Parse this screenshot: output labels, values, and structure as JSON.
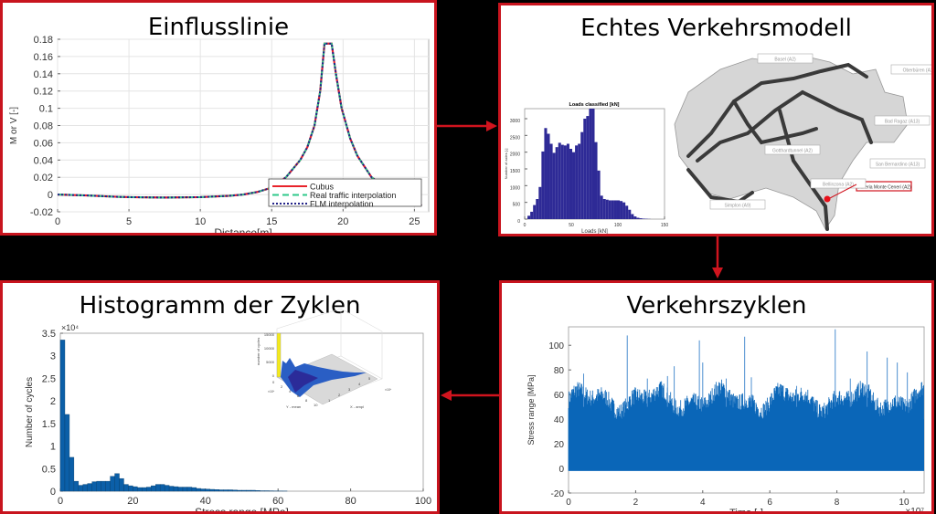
{
  "colors": {
    "border": "#c8141e",
    "bar_dark": "#2e2a96",
    "bar_blue": "#0b5fa8",
    "series_blue": "#0a66b8",
    "cubus": "#e8232b",
    "real": "#2ec98a",
    "flm": "#222288"
  },
  "panels": {
    "influence": {
      "title": "Einflusslinie"
    },
    "traffic_model": {
      "title": "Echtes Verkehrsmodell",
      "map_labels": [
        "Basel (A2)",
        "Oberbüren (A1)",
        "Gotthardtunnel (A2)",
        "Galleria Monte Ceneri (A2)",
        "San Bernardino (A13)",
        "Bad Ragaz (A13)",
        "Bellinzona (A2)",
        "Simplon (A9)"
      ]
    },
    "cycles_histogram": {
      "title": "Histogramm der Zyklen"
    },
    "traffic_cycles": {
      "title": "Verkehrszyklen"
    }
  },
  "chart_data": [
    {
      "id": "influence",
      "type": "line",
      "title": "",
      "xlabel": "Distance[m]",
      "ylabel": "M or V [-]",
      "xlim": [
        0,
        26
      ],
      "ylim": [
        -0.02,
        0.18
      ],
      "grid": true,
      "xticks": [
        "0",
        "5",
        "10",
        "15",
        "20",
        "25"
      ],
      "xtick_values": [
        0,
        5,
        10,
        15,
        20,
        25
      ],
      "yticks": [
        "-0.02",
        "0",
        "0.02",
        "0.04",
        "0.06",
        "0.08",
        "0.1",
        "0.12",
        "0.14",
        "0.16",
        "0.18"
      ],
      "ytick_values": [
        -0.02,
        0,
        0.02,
        0.04,
        0.06,
        0.08,
        0.1,
        0.12,
        0.14,
        0.16,
        0.18
      ],
      "legend": "bottom-right",
      "x": [
        0,
        2,
        4,
        5,
        7.5,
        10,
        12,
        13,
        14,
        15,
        16,
        17,
        17.5,
        18,
        18.4,
        18.7,
        19.2,
        19.5,
        19.9,
        20.5,
        21,
        22,
        23,
        24,
        25,
        25.5
      ],
      "series": [
        {
          "name": "Cubus",
          "style": "solid",
          "y": [
            0,
            -0.001,
            -0.0025,
            -0.003,
            -0.0035,
            -0.003,
            -0.0015,
            0,
            0.003,
            0.008,
            0.02,
            0.04,
            0.055,
            0.08,
            0.12,
            0.175,
            0.175,
            0.14,
            0.1,
            0.065,
            0.045,
            0.02,
            0.008,
            0.002,
            -0.002,
            -0.013
          ]
        },
        {
          "name": "Real traffic interpolation",
          "style": "dashed",
          "y": [
            0,
            -0.001,
            -0.0025,
            -0.003,
            -0.0035,
            -0.003,
            -0.0015,
            0,
            0.003,
            0.008,
            0.02,
            0.04,
            0.055,
            0.08,
            0.12,
            0.175,
            0.175,
            0.14,
            0.1,
            0.065,
            0.045,
            0.02,
            0.008,
            0.002,
            -0.002,
            -0.013
          ]
        },
        {
          "name": "FLM interpolation",
          "style": "dotted",
          "y": [
            0,
            -0.001,
            -0.0025,
            -0.003,
            -0.0035,
            -0.003,
            -0.0015,
            0,
            0.003,
            0.008,
            0.02,
            0.04,
            0.055,
            0.08,
            0.12,
            0.175,
            0.175,
            0.14,
            0.1,
            0.065,
            0.045,
            0.02,
            0.008,
            0.002,
            -0.002,
            -0.013
          ]
        }
      ]
    },
    {
      "id": "loads",
      "type": "bar",
      "title": "Loads classified [kN]",
      "xlabel": "Loads [kN]",
      "ylabel": "Number of axles [-]",
      "xlim": [
        0,
        150
      ],
      "ylim": [
        0,
        3300
      ],
      "bin_width": 3,
      "xticks": [
        "0",
        "50",
        "100",
        "150"
      ],
      "xtick_values": [
        0,
        50,
        100,
        150
      ],
      "yticks": [
        "0",
        "500",
        "1000",
        "1500",
        "2000",
        "2500",
        "3000"
      ],
      "ytick_values": [
        0,
        500,
        1000,
        1500,
        2000,
        2500,
        3000
      ],
      "bin_starts": [
        0,
        3,
        6,
        9,
        12,
        15,
        18,
        21,
        24,
        27,
        30,
        33,
        36,
        39,
        42,
        45,
        48,
        51,
        54,
        57,
        60,
        63,
        66,
        69,
        72,
        75,
        78,
        81,
        84,
        87,
        90,
        93,
        96,
        99,
        102,
        105,
        108,
        111,
        114,
        117,
        120,
        123,
        126,
        129,
        132
      ],
      "values": [
        0,
        100,
        220,
        420,
        600,
        960,
        2020,
        2720,
        2550,
        2250,
        1980,
        2150,
        2280,
        2220,
        2200,
        2250,
        2100,
        2000,
        2200,
        2250,
        2600,
        3000,
        3080,
        3300,
        3300,
        2300,
        1450,
        700,
        600,
        580,
        560,
        560,
        560,
        560,
        540,
        500,
        400,
        280,
        150,
        80,
        40,
        25,
        15,
        10,
        5
      ]
    },
    {
      "id": "cycles",
      "type": "bar",
      "title": "",
      "xlabel": "Stress range [MPa]",
      "ylabel": "Number of cycles",
      "yscale_label": "×10⁴",
      "xlim": [
        0,
        100
      ],
      "ylim": [
        0,
        3.5
      ],
      "bin_width": 1.25,
      "xticks": [
        "0",
        "20",
        "40",
        "60",
        "80",
        "100"
      ],
      "xtick_values": [
        0,
        20,
        40,
        60,
        80,
        100
      ],
      "yticks": [
        "0",
        "0.5",
        "1",
        "1.5",
        "2",
        "2.5",
        "3",
        "3.5"
      ],
      "ytick_values": [
        0,
        0.5,
        1,
        1.5,
        2,
        2.5,
        3,
        3.5
      ],
      "values": [
        3.35,
        1.7,
        0.75,
        0.22,
        0.13,
        0.15,
        0.17,
        0.21,
        0.22,
        0.22,
        0.22,
        0.33,
        0.39,
        0.28,
        0.15,
        0.12,
        0.1,
        0.08,
        0.08,
        0.09,
        0.12,
        0.15,
        0.15,
        0.13,
        0.11,
        0.1,
        0.09,
        0.09,
        0.09,
        0.08,
        0.06,
        0.05,
        0.045,
        0.04,
        0.035,
        0.03,
        0.03,
        0.03,
        0.025,
        0.02,
        0.02,
        0.02,
        0.02,
        0.015,
        0.01,
        0.01,
        0.008,
        0.005,
        0.004,
        0.003
      ]
    },
    {
      "id": "cycles3d",
      "type": "bar3d",
      "zlabel": "number of cycles",
      "xlabel": "X - ampl",
      "ylabel": "Y - mean",
      "xscale_label": "×10⁴",
      "yscale_label": "×10⁴",
      "zticks": [
        "0",
        "5000",
        "10000",
        "15000"
      ],
      "xticks": [
        "1",
        "2",
        "3",
        "4",
        "5"
      ],
      "yticks": [
        "0",
        "2",
        "4",
        "6",
        "8",
        "10"
      ],
      "peak": 14500
    },
    {
      "id": "timeseries",
      "type": "line",
      "title": "",
      "xlabel": "Time [-]",
      "ylabel": "Stress range [MPa]",
      "xscale_label": "×10⁷",
      "xlim": [
        0,
        10.6
      ],
      "ylim": [
        -20,
        115
      ],
      "xticks": [
        "0",
        "2",
        "4",
        "6",
        "8",
        "10"
      ],
      "xtick_values": [
        0,
        2,
        4,
        6,
        8,
        10
      ],
      "yticks": [
        "-20",
        "0",
        "20",
        "40",
        "60",
        "80",
        "100"
      ],
      "ytick_values": [
        -20,
        0,
        20,
        40,
        60,
        80,
        100
      ],
      "baseline_min": -2,
      "envelope_typical": 55,
      "spikes": [
        [
          0.45,
          77
        ],
        [
          1.75,
          108
        ],
        [
          2.35,
          73
        ],
        [
          2.95,
          75
        ],
        [
          3.15,
          83
        ],
        [
          3.9,
          104
        ],
        [
          4.0,
          86
        ],
        [
          4.7,
          73
        ],
        [
          5.25,
          107
        ],
        [
          5.45,
          74
        ],
        [
          6.8,
          67
        ],
        [
          7.95,
          113
        ],
        [
          8.4,
          73
        ],
        [
          8.9,
          95
        ],
        [
          9.5,
          90
        ],
        [
          9.8,
          86
        ],
        [
          10.1,
          78
        ]
      ]
    }
  ]
}
